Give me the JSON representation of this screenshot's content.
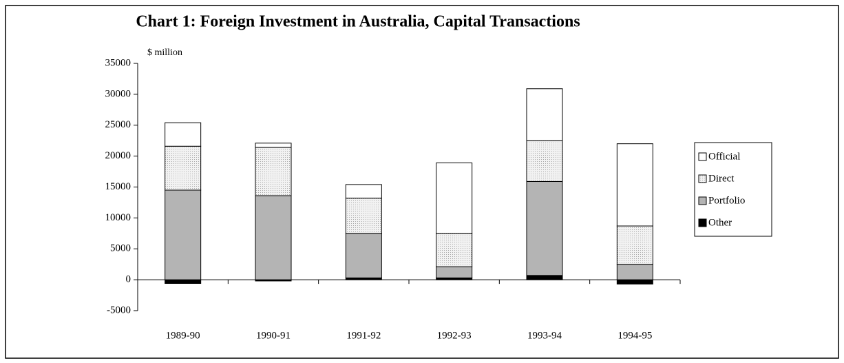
{
  "chart_data": {
    "type": "stacked_bar",
    "title": "Chart 1:    Foreign Investment in Australia, Capital Transactions",
    "y_axis_label": "$ million",
    "categories": [
      "1989-90",
      "1990-91",
      "1991-92",
      "1992-93",
      "1993-94",
      "1994-95"
    ],
    "series": [
      {
        "name": "Other",
        "color": "#000000",
        "values": [
          -600,
          -200,
          300,
          300,
          700,
          -700
        ]
      },
      {
        "name": "Portfolio",
        "color": "#b4b4b4",
        "values": [
          14500,
          13600,
          7200,
          1800,
          15200,
          2500
        ]
      },
      {
        "name": "Direct",
        "color": "#e8e8e8",
        "values": [
          7100,
          7800,
          5700,
          5400,
          6600,
          6200
        ]
      },
      {
        "name": "Official",
        "color": "#ffffff",
        "values": [
          3800,
          700,
          2200,
          11400,
          8400,
          13300
        ]
      }
    ],
    "ylim": [
      -5000,
      35000
    ],
    "yticks": [
      -5000,
      0,
      5000,
      10000,
      15000,
      20000,
      25000,
      30000,
      35000
    ],
    "legend": "right"
  }
}
